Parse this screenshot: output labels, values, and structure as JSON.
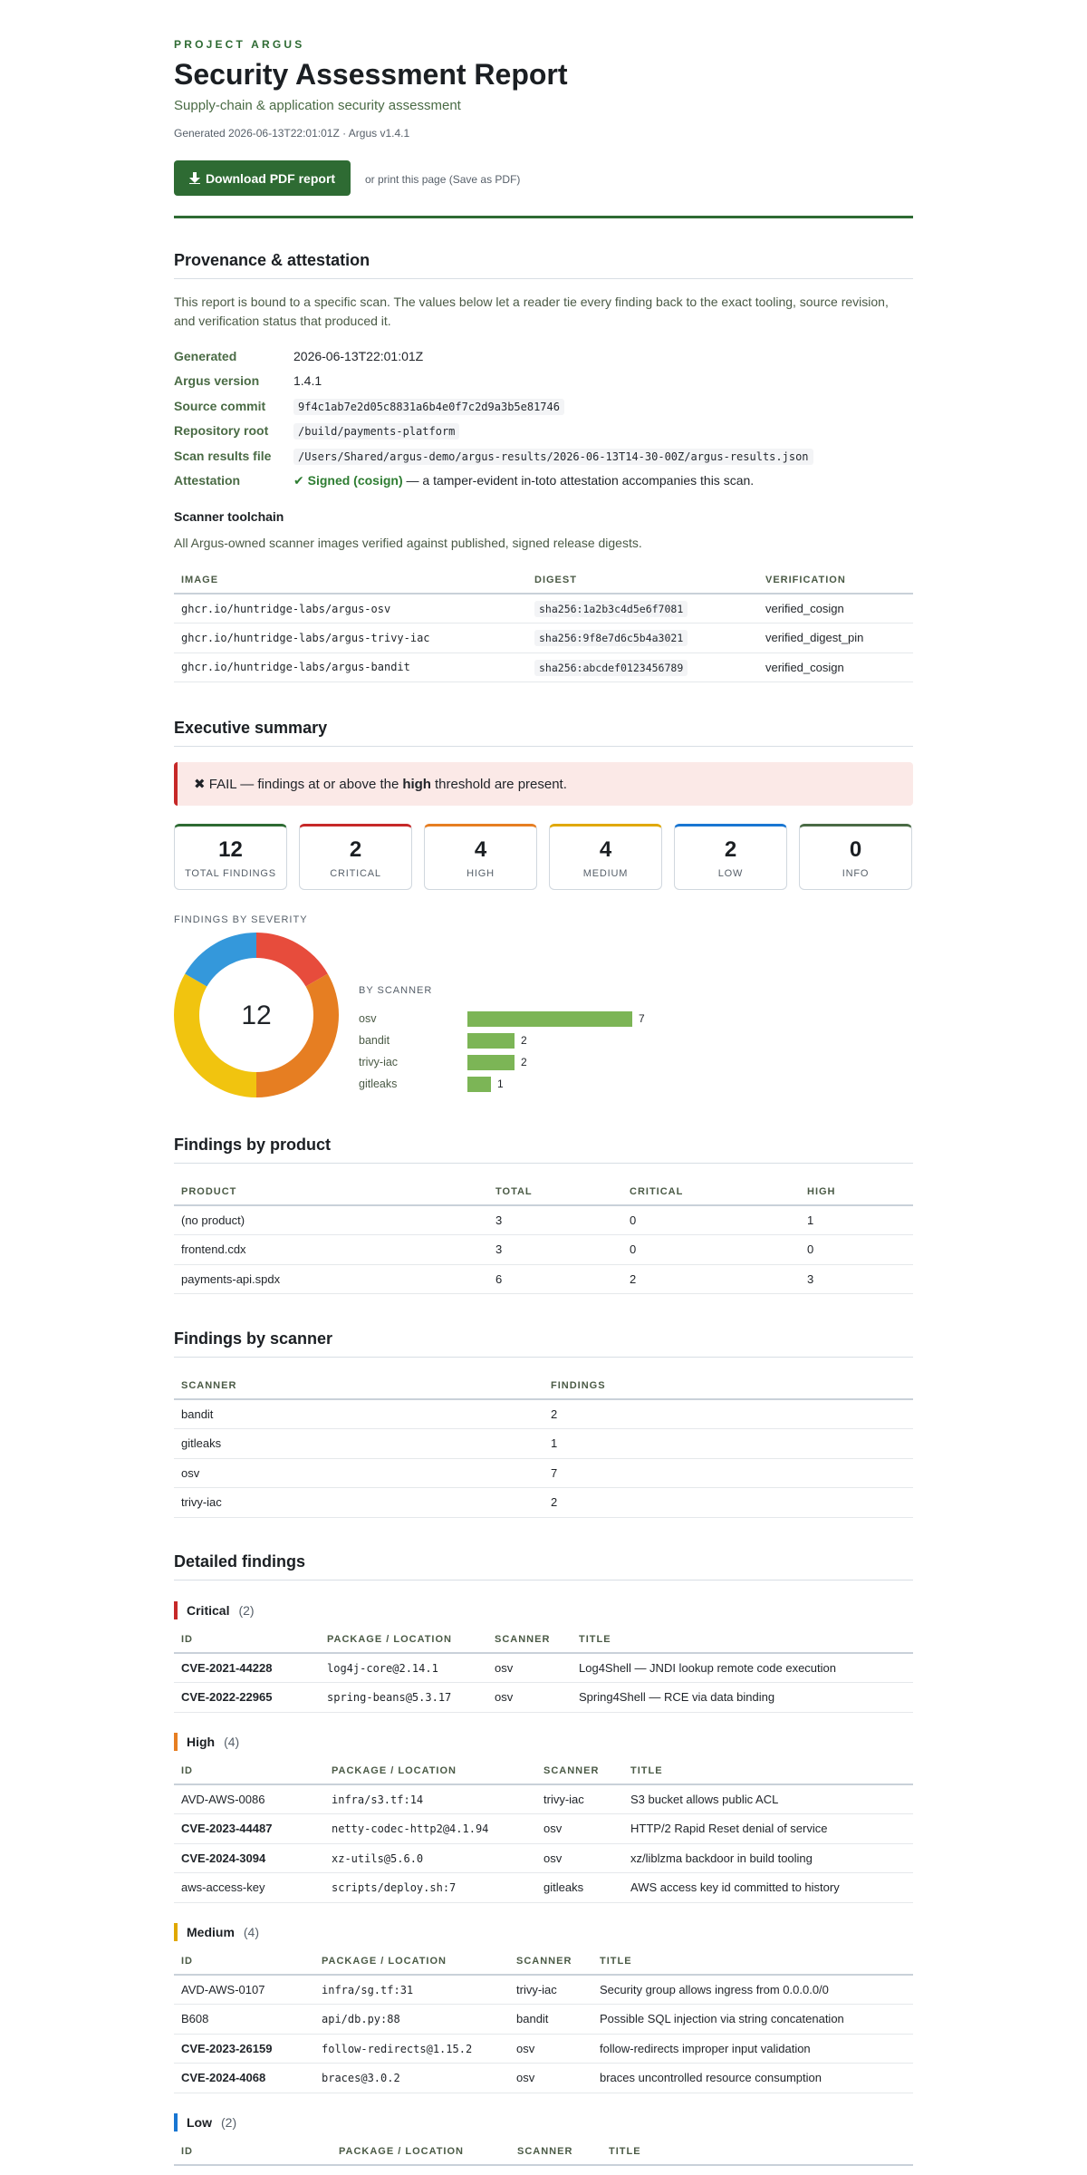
{
  "header": {
    "brand": "PROJECT ARGUS",
    "title": "Security Assessment Report",
    "subtitle": "Supply-chain & application security assessment",
    "generated_line": "Generated 2026-06-13T22:01:01Z · Argus v1.4.1",
    "download_label": "Download PDF report",
    "download_icon": "download-arrow-icon",
    "print_hint": "or print this page (Save as PDF)"
  },
  "provenance": {
    "heading": "Provenance & attestation",
    "intro": "This report is bound to a specific scan. The values below let a reader tie every finding back to the exact tooling, source revision, and verification status that produced it.",
    "fields": [
      {
        "key": "Generated",
        "value": "2026-06-13T22:01:01Z"
      },
      {
        "key": "Argus version",
        "value": "1.4.1"
      },
      {
        "key": "Source commit",
        "value": "9f4c1ab7e2d05c8831a6b4e0f7c2d9a3b5e81746"
      },
      {
        "key": "Repository root",
        "value": "/build/payments-platform"
      },
      {
        "key": "Scan results file",
        "value": "/Users/Shared/argus-demo/argus-results/2026-06-13T14-30-00Z/argus-results.json"
      }
    ],
    "attestation_key": "Attestation",
    "attestation_signed": "✔ Signed (cosign)",
    "attestation_rest": " — a tamper-evident in-toto attestation accompanies this scan.",
    "toolchain_heading": "Scanner toolchain",
    "toolchain_intro": "All Argus-owned scanner images verified against published, signed release digests.",
    "toolchain_columns": [
      "IMAGE",
      "DIGEST",
      "VERIFICATION"
    ],
    "toolchain_rows": [
      {
        "image": "ghcr.io/huntridge-labs/argus-osv",
        "digest": "sha256:1a2b3c4d5e6f7081",
        "verification": "verified_cosign"
      },
      {
        "image": "ghcr.io/huntridge-labs/argus-trivy-iac",
        "digest": "sha256:9f8e7d6c5b4a3021",
        "verification": "verified_digest_pin"
      },
      {
        "image": "ghcr.io/huntridge-labs/argus-bandit",
        "digest": "sha256:abcdef0123456789",
        "verification": "verified_cosign"
      }
    ]
  },
  "summary": {
    "heading": "Executive summary",
    "fail_prefix": "✖ FAIL — findings at or above the",
    "fail_threshold": "high",
    "fail_suffix": "threshold are present.",
    "cards": [
      {
        "value": "12",
        "label": "Total findings",
        "color": "#2e6b33"
      },
      {
        "value": "2",
        "label": "Critical",
        "color": "#c62828"
      },
      {
        "value": "4",
        "label": "High",
        "color": "#e67e22"
      },
      {
        "value": "4",
        "label": "Medium",
        "color": "#e0a800"
      },
      {
        "value": "2",
        "label": "Low",
        "color": "#1976d2"
      },
      {
        "value": "0",
        "label": "Info",
        "color": "#4a6b45"
      }
    ],
    "severity_caption": "FINDINGS BY SEVERITY",
    "scanner_caption": "BY SCANNER",
    "donut_total": "12"
  },
  "chart_data": [
    {
      "type": "pie",
      "title": "FINDINGS BY SEVERITY",
      "categories": [
        "Critical",
        "High",
        "Medium",
        "Low",
        "Info"
      ],
      "values": [
        2,
        4,
        4,
        2,
        0
      ],
      "colors": [
        "#e74c3c",
        "#e67e22",
        "#f1c40f",
        "#3498db",
        "#95a5a6"
      ],
      "center_label": "12"
    },
    {
      "type": "bar",
      "title": "BY SCANNER",
      "categories": [
        "osv",
        "bandit",
        "trivy-iac",
        "gitleaks"
      ],
      "values": [
        7,
        2,
        2,
        1
      ],
      "color": "#7cb556"
    }
  ],
  "by_product": {
    "heading": "Findings by product",
    "columns": [
      "PRODUCT",
      "TOTAL",
      "CRITICAL",
      "HIGH"
    ],
    "rows": [
      [
        "(no product)",
        "3",
        "0",
        "1"
      ],
      [
        "frontend.cdx",
        "3",
        "0",
        "0"
      ],
      [
        "payments-api.spdx",
        "6",
        "2",
        "3"
      ]
    ]
  },
  "by_scanner": {
    "heading": "Findings by scanner",
    "columns": [
      "SCANNER",
      "FINDINGS"
    ],
    "rows": [
      [
        "bandit",
        "2"
      ],
      [
        "gitleaks",
        "1"
      ],
      [
        "osv",
        "7"
      ],
      [
        "trivy-iac",
        "2"
      ]
    ]
  },
  "detailed": {
    "heading": "Detailed findings",
    "columns": [
      "ID",
      "PACKAGE / LOCATION",
      "SCANNER",
      "TITLE"
    ],
    "groups": [
      {
        "label": "Critical",
        "count": "(2)",
        "color": "#c62828",
        "rows": [
          {
            "id": "CVE-2021-44228",
            "pkg": "log4j-core@2.14.1",
            "scanner": "osv",
            "title": "Log4Shell — JNDI lookup remote code execution"
          },
          {
            "id": "CVE-2022-22965",
            "pkg": "spring-beans@5.3.17",
            "scanner": "osv",
            "title": "Spring4Shell — RCE via data binding"
          }
        ]
      },
      {
        "label": "High",
        "count": "(4)",
        "color": "#e67e22",
        "rows": [
          {
            "id": "AVD-AWS-0086",
            "pkg": "infra/s3.tf:14",
            "scanner": "trivy-iac",
            "title": "S3 bucket allows public ACL"
          },
          {
            "id": "CVE-2023-44487",
            "pkg": "netty-codec-http2@4.1.94",
            "scanner": "osv",
            "title": "HTTP/2 Rapid Reset denial of service"
          },
          {
            "id": "CVE-2024-3094",
            "pkg": "xz-utils@5.6.0",
            "scanner": "osv",
            "title": "xz/liblzma backdoor in build tooling"
          },
          {
            "id": "aws-access-key",
            "pkg": "scripts/deploy.sh:7",
            "scanner": "gitleaks",
            "title": "AWS access key id committed to history"
          }
        ]
      },
      {
        "label": "Medium",
        "count": "(4)",
        "color": "#e0a800",
        "rows": [
          {
            "id": "AVD-AWS-0107",
            "pkg": "infra/sg.tf:31",
            "scanner": "trivy-iac",
            "title": "Security group allows ingress from 0.0.0.0/0"
          },
          {
            "id": "B608",
            "pkg": "api/db.py:88",
            "scanner": "bandit",
            "title": "Possible SQL injection via string concatenation"
          },
          {
            "id": "CVE-2023-26159",
            "pkg": "follow-redirects@1.15.2",
            "scanner": "osv",
            "title": "follow-redirects improper input validation"
          },
          {
            "id": "CVE-2024-4068",
            "pkg": "braces@3.0.2",
            "scanner": "osv",
            "title": "braces uncontrolled resource consumption"
          }
        ]
      },
      {
        "label": "Low",
        "count": "(2)",
        "color": "#1976d2",
        "rows": []
      }
    ]
  }
}
